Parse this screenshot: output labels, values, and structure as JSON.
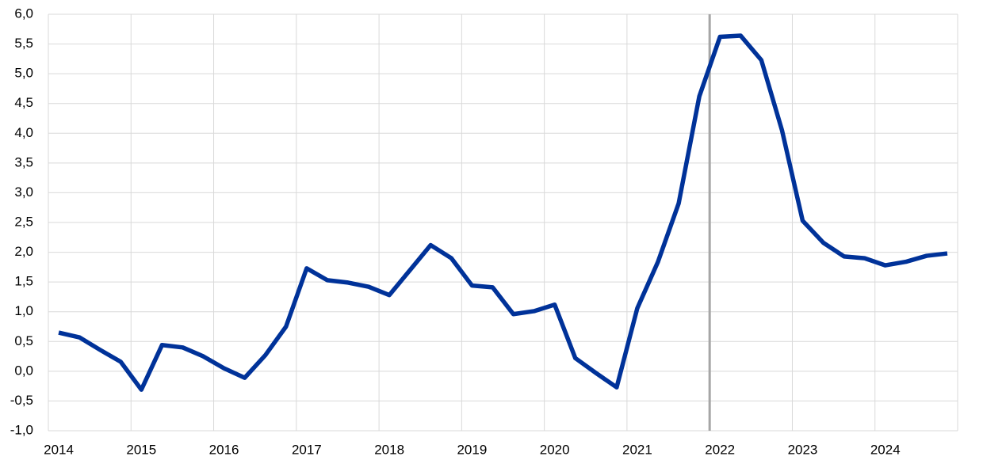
{
  "chart_data": {
    "type": "line",
    "categories": [
      "2014",
      null,
      null,
      null,
      "2015",
      null,
      null,
      null,
      "2016",
      null,
      null,
      null,
      "2017",
      null,
      null,
      null,
      "2018",
      null,
      null,
      null,
      "2019",
      null,
      null,
      null,
      "2020",
      null,
      null,
      null,
      "2021",
      null,
      null,
      null,
      "2022",
      null,
      null,
      null,
      "2023",
      null,
      null,
      null,
      "2024",
      null,
      null,
      null
    ],
    "series": [
      {
        "color": "#003299",
        "values": [
          0.65,
          0.57,
          0.36,
          0.16,
          -0.31,
          0.44,
          0.4,
          0.25,
          0.05,
          -0.11,
          0.27,
          0.75,
          1.73,
          1.53,
          1.49,
          1.42,
          1.28,
          1.7,
          2.12,
          1.9,
          1.44,
          1.41,
          0.96,
          1.01,
          1.12,
          0.22,
          -0.03,
          -0.27,
          1.06,
          1.84,
          2.82,
          4.62,
          5.62,
          5.64,
          5.23,
          4.05,
          2.53,
          2.16,
          1.93,
          1.9,
          1.78,
          1.84,
          1.94,
          1.98
        ]
      }
    ],
    "ylim": [
      -1,
      6
    ],
    "yticks": [
      {
        "value": -1,
        "label": "-1,0"
      },
      {
        "value": -0.5,
        "label": "-0,5"
      },
      {
        "value": 0,
        "label": "0,0"
      },
      {
        "value": 0.5,
        "label": "0,5"
      },
      {
        "value": 1,
        "label": "1,0"
      },
      {
        "value": 1.5,
        "label": "1,5"
      },
      {
        "value": 2,
        "label": "2,0"
      },
      {
        "value": 2.5,
        "label": "2,5"
      },
      {
        "value": 3,
        "label": "3,0"
      },
      {
        "value": 3.5,
        "label": "3,5"
      },
      {
        "value": 4,
        "label": "4,0"
      },
      {
        "value": 4.5,
        "label": "4,5"
      },
      {
        "value": 5,
        "label": "5,0"
      },
      {
        "value": 5.5,
        "label": "5,5"
      },
      {
        "value": 6,
        "label": "6,0"
      }
    ],
    "grid": true,
    "marker_line": {
      "category_index": 32,
      "color": "#a6a6a6"
    }
  }
}
